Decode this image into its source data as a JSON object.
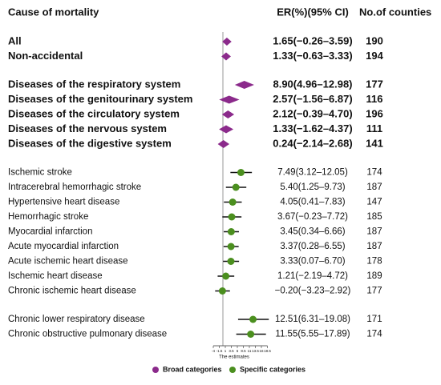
{
  "chart_data": {
    "type": "forest",
    "columns": [
      "Cause of mortality",
      "ER(%)(95% CI)",
      "No.of counties"
    ],
    "x_label": "The estimates",
    "xlim": [
      -4,
      18.5
    ],
    "xticks": [
      -4,
      -1.5,
      1,
      3.5,
      6,
      8.5,
      11,
      13.5,
      16,
      18.5
    ],
    "reference": 0,
    "series": [
      {
        "name": "Broad categories",
        "color": "#8b2a8b",
        "marker": "diamond"
      },
      {
        "name": "Specific categories",
        "color": "#4b8f1f",
        "marker": "circle"
      }
    ],
    "sections": [
      {
        "series": 0,
        "rows": [
          {
            "name": "All",
            "values": [
              1.65,
              -0.26,
              3.59
            ],
            "value_label": "1.65(−0.26–3.59)",
            "counties": 190
          },
          {
            "name": "Non-accidental",
            "values": [
              1.33,
              -0.63,
              3.33
            ],
            "value_label": "1.33(−0.63–3.33)",
            "counties": 194
          }
        ]
      },
      {
        "series": 0,
        "rows": [
          {
            "name": "Diseases of the respiratory system",
            "values": [
              8.9,
              4.96,
              12.98
            ],
            "value_label": "8.90(4.96–12.98)",
            "counties": 177
          },
          {
            "name": "Diseases of the genitourinary system",
            "values": [
              2.57,
              -1.56,
              6.87
            ],
            "value_label": "2.57(−1.56–6.87)",
            "counties": 116
          },
          {
            "name": "Diseases of the circulatory system",
            "values": [
              2.12,
              -0.39,
              4.7
            ],
            "value_label": "2.12(−0.39–4.70)",
            "counties": 196
          },
          {
            "name": "Diseases of the nervous system",
            "values": [
              1.33,
              -1.62,
              4.37
            ],
            "value_label": "1.33(−1.62–4.37)",
            "counties": 111
          },
          {
            "name": "Diseases of the digestive system",
            "values": [
              0.24,
              -2.14,
              2.68
            ],
            "value_label": "0.24(−2.14–2.68)",
            "counties": 141
          }
        ]
      },
      {
        "series": 1,
        "rows": [
          {
            "name": "Ischemic stroke",
            "values": [
              7.49,
              3.12,
              12.05
            ],
            "value_label": "7.49(3.12–12.05)",
            "counties": 174
          },
          {
            "name": "Intracerebral hemorrhagic stroke",
            "values": [
              5.4,
              1.25,
              9.73
            ],
            "value_label": "5.40(1.25–9.73)",
            "counties": 187
          },
          {
            "name": "Hypertensive heart disease",
            "values": [
              4.05,
              0.41,
              7.83
            ],
            "value_label": "4.05(0.41–7.83)",
            "counties": 147
          },
          {
            "name": "Hemorrhagic stroke",
            "values": [
              3.67,
              -0.23,
              7.72
            ],
            "value_label": "3.67(−0.23–7.72)",
            "counties": 185
          },
          {
            "name": "Myocardial infarction",
            "values": [
              3.45,
              0.34,
              6.66
            ],
            "value_label": "3.45(0.34–6.66)",
            "counties": 187
          },
          {
            "name": "Acute myocardial infarction",
            "values": [
              3.37,
              0.28,
              6.55
            ],
            "value_label": "3.37(0.28–6.55)",
            "counties": 187
          },
          {
            "name": "Acute ischemic heart disease",
            "values": [
              3.33,
              0.07,
              6.7
            ],
            "value_label": "3.33(0.07–6.70)",
            "counties": 178
          },
          {
            "name": "Ischemic heart disease",
            "values": [
              1.21,
              -2.19,
              4.72
            ],
            "value_label": "1.21(−2.19–4.72)",
            "counties": 189
          },
          {
            "name": "Chronic ischemic heart disease",
            "values": [
              -0.2,
              -3.23,
              2.92
            ],
            "value_label": "−0.20(−3.23–2.92)",
            "counties": 177
          }
        ]
      },
      {
        "series": 1,
        "rows": [
          {
            "name": "Chronic lower respiratory disease",
            "values": [
              12.51,
              6.31,
              19.08
            ],
            "value_label": "12.51(6.31–19.08)",
            "counties": 171
          },
          {
            "name": "Chronic obstructive pulmonary disease",
            "values": [
              11.55,
              5.55,
              17.89
            ],
            "value_label": "11.55(5.55–17.89)",
            "counties": 174
          }
        ]
      }
    ]
  }
}
